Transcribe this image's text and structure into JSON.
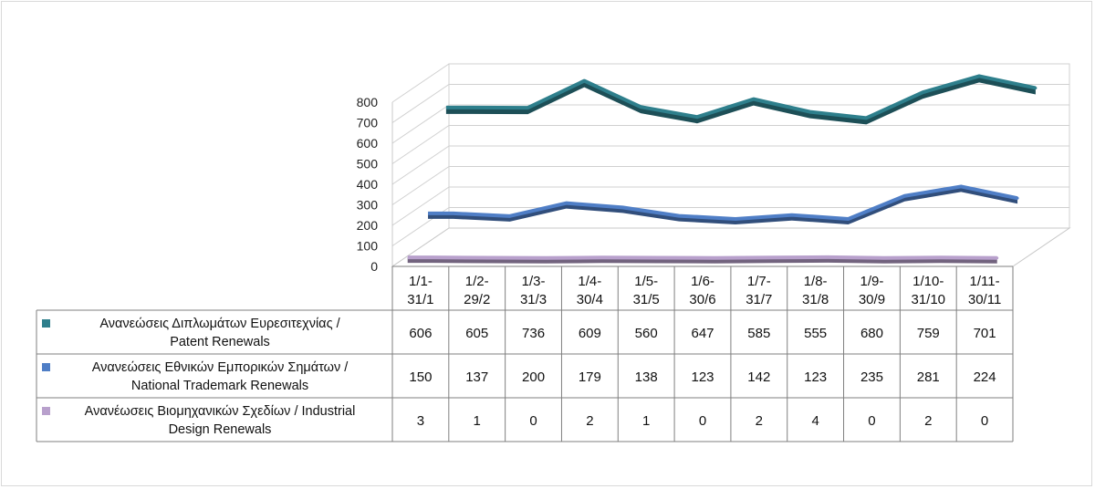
{
  "chart_data": {
    "type": "line",
    "title": "",
    "xlabel": "",
    "ylabel": "",
    "ylim": [
      0,
      800
    ],
    "yticks": [
      "0",
      "100",
      "200",
      "300",
      "400",
      "500",
      "600",
      "700",
      "800"
    ],
    "grid": true,
    "categories": [
      [
        "1/1-",
        "31/1"
      ],
      [
        "1/2-",
        "29/2"
      ],
      [
        "1/3-",
        "31/3"
      ],
      [
        "1/4-",
        "30/4"
      ],
      [
        "1/5-",
        "31/5"
      ],
      [
        "1/6-",
        "30/6"
      ],
      [
        "1/7-",
        "31/7"
      ],
      [
        "1/8-",
        "31/8"
      ],
      [
        "1/9-",
        "30/9"
      ],
      [
        "1/10-",
        "31/10"
      ],
      [
        "1/11-",
        "30/11"
      ]
    ],
    "series": [
      {
        "name_lines": [
          "Ανανεώσεις Διπλωμάτων Ευρεσιτεχνίας  /",
          "Patent Renewals"
        ],
        "color": "#2e7f8c",
        "values": [
          606,
          605,
          736,
          609,
          560,
          647,
          585,
          555,
          680,
          759,
          701
        ]
      },
      {
        "name_lines": [
          "Ανανεώσεις Εθνικών Εμπορικών Σημάτων /",
          "National Trademark Renewals"
        ],
        "color": "#4f7ec6",
        "values": [
          150,
          137,
          200,
          179,
          138,
          123,
          142,
          123,
          235,
          281,
          224
        ]
      },
      {
        "name_lines": [
          "Ανανέωσεις Βιομηχανικών Σχεδίων / Industrial",
          "Design Renewals"
        ],
        "color": "#b8a0cc",
        "values": [
          3,
          1,
          0,
          2,
          1,
          0,
          2,
          4,
          0,
          2,
          0
        ]
      }
    ]
  }
}
